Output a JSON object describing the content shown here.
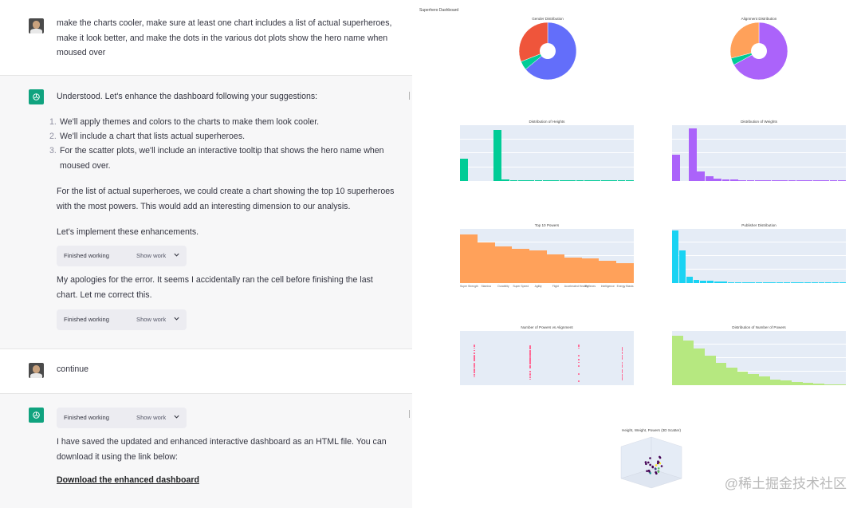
{
  "chat": {
    "msg1": {
      "text": "make the charts cooler, make sure at least one chart includes a list of actual superheroes, make it look better, and make the dots in the various dot plots show the hero name when moused over"
    },
    "msg2": {
      "intro": "Understood. Let's enhance the dashboard following your suggestions:",
      "items": [
        {
          "num": "1.",
          "text": "We'll apply themes and colors to the charts to make them look cooler."
        },
        {
          "num": "2.",
          "text": "We'll include a chart that lists actual superheroes."
        },
        {
          "num": "3.",
          "text": "For the scatter plots, we'll include an interactive tooltip that shows the hero name when moused over."
        }
      ],
      "para1": "For the list of actual superheroes, we could create a chart showing the top 10 superheroes with the most powers. This would add an interesting dimension to our analysis.",
      "para2": "Let's implement these enhancements.",
      "working1": {
        "label": "Finished working",
        "show": "Show work"
      },
      "para3": "My apologies for the error. It seems I accidentally ran the cell before finishing the last chart. Let me correct this.",
      "working2": {
        "label": "Finished working",
        "show": "Show work"
      }
    },
    "msg3": {
      "text": "continue"
    },
    "msg4": {
      "working": {
        "label": "Finished working",
        "show": "Show work"
      },
      "text": "I have saved the updated and enhanced interactive dashboard as an HTML file. You can download it using the link below:",
      "link": "Download the enhanced dashboard"
    }
  },
  "dashboard": {
    "title": "Superhero Dashboard",
    "colors": {
      "blue": "#636efa",
      "red": "#ef553b",
      "green": "#00cc96",
      "purple": "#ab63fa",
      "orange": "#ffa15a",
      "cyan": "#19d3f3",
      "lime": "#b6e880",
      "pink": "#ff6692"
    },
    "charts": [
      {
        "name": "gender",
        "type": "pie",
        "title": "Gender Distribution"
      },
      {
        "name": "alignment",
        "type": "pie",
        "title": "Alignment Distribution"
      },
      {
        "name": "heights",
        "type": "bar",
        "title": "Distribution of Heights"
      },
      {
        "name": "weights",
        "type": "bar",
        "title": "Distribution of Weights"
      },
      {
        "name": "top10",
        "type": "bar",
        "title": "Top 10 Powers"
      },
      {
        "name": "publisher",
        "type": "bar",
        "title": "Publisher Distribution"
      },
      {
        "name": "powers-vs-alignment",
        "type": "scatter",
        "title": "Number of Powers vs Alignment"
      },
      {
        "name": "num-powers",
        "type": "bar",
        "title": "Distribution of Number of Powers"
      },
      {
        "name": "scatter3d",
        "type": "scatter",
        "title": "Height, Weight, Powers (3D Scatter)"
      }
    ]
  },
  "chart_data": [
    {
      "type": "pie",
      "title": "Gender Distribution",
      "values": [
        64,
        5,
        31
      ],
      "colors": [
        "#636efa",
        "#00cc96",
        "#ef553b"
      ]
    },
    {
      "type": "pie",
      "title": "Alignment Distribution",
      "values": [
        67,
        4,
        29
      ],
      "colors": [
        "#ab63fa",
        "#00cc96",
        "#ffa15a"
      ]
    },
    {
      "type": "bar",
      "title": "Distribution of Heights",
      "values": [
        180,
        0,
        0,
        0,
        410,
        10,
        5,
        4,
        3,
        2,
        2,
        1,
        1,
        1,
        1,
        1,
        1,
        1,
        1,
        1,
        1
      ],
      "ylim": [
        0,
        450
      ],
      "color": "#00cc96"
    },
    {
      "type": "bar",
      "title": "Distribution of Weights",
      "values": [
        160,
        0,
        320,
        60,
        30,
        15,
        10,
        8,
        5,
        3,
        2,
        2,
        1,
        1,
        1,
        1,
        1,
        1,
        1,
        1,
        1
      ],
      "ylim": [
        0,
        340
      ],
      "color": "#ab63fa"
    },
    {
      "type": "bar",
      "title": "Top 10 Powers",
      "categories": [
        "Super Strength",
        "Stamina",
        "Durability",
        "Super Speed",
        "Agility",
        "Flight",
        "Accelerated Healing",
        "Reflexes",
        "Intelligence",
        "Energy Blasts"
      ],
      "values": [
        360,
        300,
        270,
        255,
        240,
        210,
        190,
        180,
        165,
        150
      ],
      "ylim": [
        0,
        400
      ],
      "color": "#ffa15a"
    },
    {
      "type": "bar",
      "title": "Publisher Distribution",
      "values": [
        390,
        240,
        45,
        25,
        18,
        15,
        12,
        10,
        8,
        7,
        6,
        5,
        4,
        4,
        3,
        3,
        3,
        2,
        2,
        2,
        2,
        2,
        1,
        1,
        1
      ],
      "ylim": [
        0,
        400
      ],
      "color": "#19d3f3"
    },
    {
      "type": "scatter",
      "title": "Number of Powers vs Alignment",
      "columns": 4,
      "color": "#ff6692"
    },
    {
      "type": "bar",
      "title": "Distribution of Number of Powers",
      "values": [
        100,
        90,
        75,
        60,
        45,
        35,
        28,
        22,
        18,
        12,
        9,
        7,
        5,
        4,
        2,
        1
      ],
      "ylim": [
        0,
        110
      ],
      "color": "#b6e880"
    },
    {
      "type": "scatter",
      "title": "Height, Weight, Powers (3D Scatter)",
      "color": "#440154"
    }
  ],
  "watermark": "@稀土掘金技术社区"
}
